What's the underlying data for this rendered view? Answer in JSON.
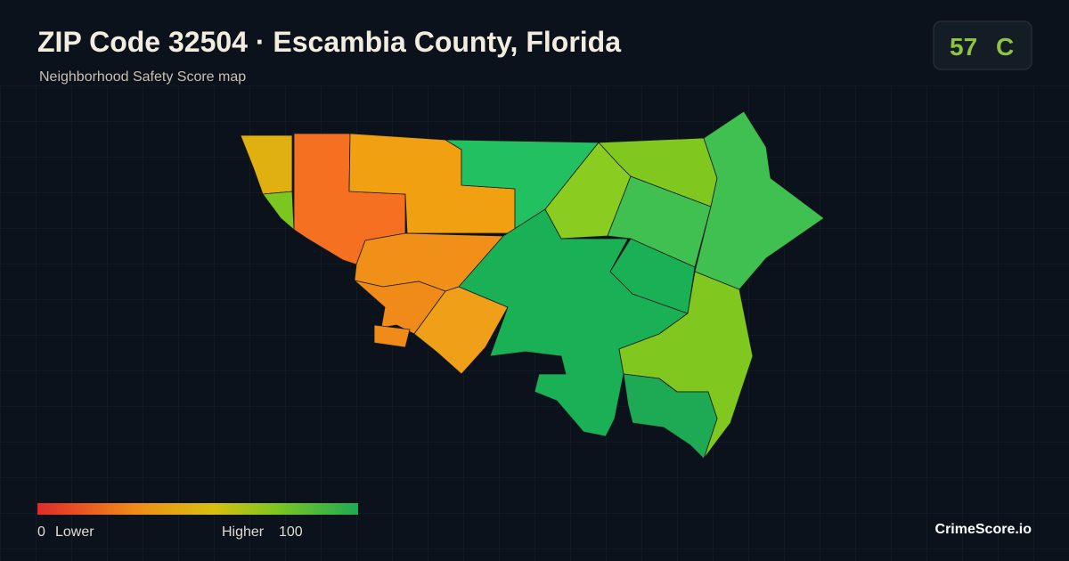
{
  "header": {
    "title": "ZIP Code 32504 · Escambia County, Florida",
    "subtitle": "Neighborhood Safety Score map"
  },
  "score": {
    "value": "57",
    "grade": "C"
  },
  "legend": {
    "min": "0",
    "min_label": "Lower",
    "max_label": "Higher",
    "max": "100"
  },
  "brand": "CrimeScore.io"
}
